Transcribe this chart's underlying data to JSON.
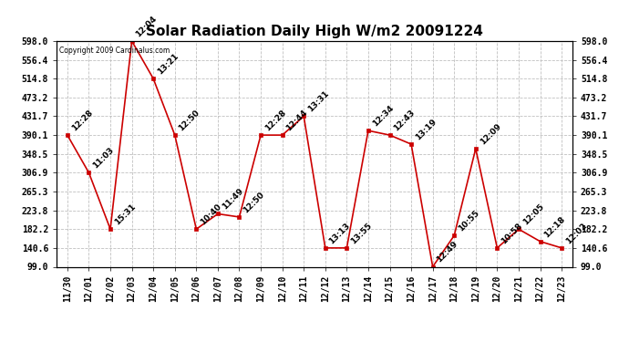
{
  "title": "Solar Radiation Daily High W/m2 20091224",
  "copyright": "Copyright 2009 Cardinalus.com",
  "x_labels": [
    "11/30",
    "12/01",
    "12/02",
    "12/03",
    "12/04",
    "12/05",
    "12/06",
    "12/07",
    "12/08",
    "12/09",
    "12/10",
    "12/11",
    "12/12",
    "12/13",
    "12/14",
    "12/15",
    "12/16",
    "12/17",
    "12/18",
    "12/19",
    "12/20",
    "12/21",
    "12/22",
    "12/23"
  ],
  "point_labels": [
    "12:28",
    "11:03",
    "15:31",
    "12:04",
    "13:21",
    "12:50",
    "10:40",
    "11:49",
    "12:50",
    "12:28",
    "12:44",
    "13:31",
    "13:13",
    "13:55",
    "12:34",
    "12:43",
    "13:19",
    "12:49",
    "10:55",
    "12:09",
    "10:58",
    "12:05",
    "12:18",
    "12:02"
  ],
  "y_values": [
    390.1,
    306.9,
    182.2,
    598.0,
    514.8,
    390.1,
    182.2,
    216.0,
    209.0,
    390.1,
    390.1,
    431.7,
    140.6,
    140.6,
    400.0,
    390.1,
    370.0,
    99.0,
    168.0,
    360.0,
    140.6,
    182.2,
    155.0,
    140.6
  ],
  "y_ticks": [
    99.0,
    140.6,
    182.2,
    223.8,
    265.3,
    306.9,
    348.5,
    390.1,
    431.7,
    473.2,
    514.8,
    556.4,
    598.0
  ],
  "line_color": "#cc0000",
  "marker_color": "#cc0000",
  "bg_color": "#ffffff",
  "grid_color": "#c0c0c0",
  "title_fontsize": 11,
  "tick_fontsize": 7,
  "label_fontsize": 6.5,
  "copyright_fontsize": 5.5,
  "annotation_fontsize": 6.5,
  "ylim_min": 99.0,
  "ylim_max": 598.0
}
